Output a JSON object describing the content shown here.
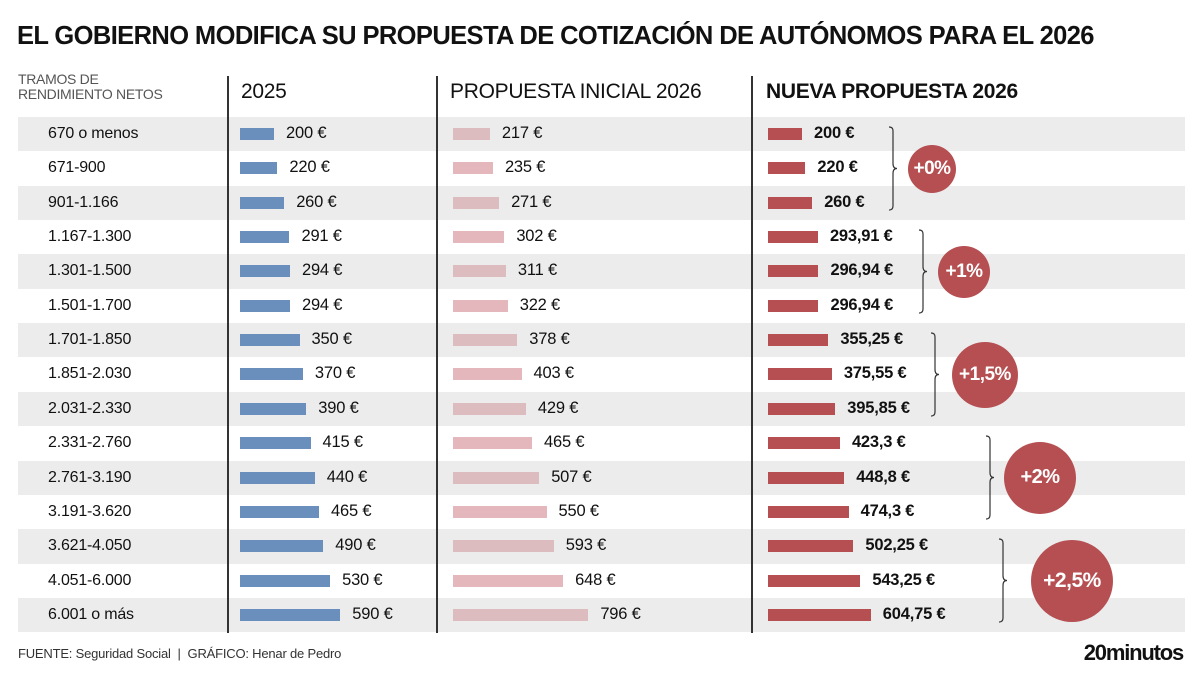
{
  "title": "EL GOBIERNO MODIFICA SU PROPUESTA DE COTIZACIÓN DE AUTÓNOMOS PARA EL 2026",
  "chart_data": {
    "type": "bar",
    "orientation": "horizontal",
    "category_header": "TRAMOS DE RENDIMIENTO NETOS",
    "categories": [
      "670 o menos",
      "671-900",
      "901-1.166",
      "1.167-1.300",
      "1.301-1.500",
      "1.501-1.700",
      "1.701-1.850",
      "1.851-2.030",
      "2.031-2.330",
      "2.331-2.760",
      "2.761-3.190",
      "3.191-3.620",
      "3.621-4.050",
      "4.051-6.000",
      "6.001 o más"
    ],
    "series": [
      {
        "name": "2025",
        "color": "#6a8fbd",
        "values": [
          200,
          220,
          260,
          291,
          294,
          294,
          350,
          370,
          390,
          415,
          440,
          465,
          490,
          530,
          590
        ],
        "labels": [
          "200 €",
          "220 €",
          "260 €",
          "291 €",
          "294 €",
          "294 €",
          "350 €",
          "370 €",
          "390 €",
          "415 €",
          "440 €",
          "465 €",
          "490 €",
          "530 €",
          "590 €"
        ]
      },
      {
        "name": "PROPUESTA INICIAL 2026",
        "color": "#e3b7bb",
        "values": [
          217,
          235,
          271,
          302,
          311,
          322,
          378,
          403,
          429,
          465,
          507,
          550,
          593,
          648,
          796
        ],
        "labels": [
          "217 €",
          "235 €",
          "271 €",
          "302 €",
          "311 €",
          "322 €",
          "378 €",
          "403 €",
          "429 €",
          "465 €",
          "507 €",
          "550 €",
          "593 €",
          "648 €",
          "796 €"
        ]
      },
      {
        "name": "NUEVA PROPUESTA 2026",
        "color": "#b54f52",
        "values": [
          200,
          220,
          260,
          293.91,
          296.94,
          296.94,
          355.25,
          375.55,
          395.85,
          423.3,
          448.8,
          474.3,
          502.25,
          543.25,
          604.75
        ],
        "labels": [
          "200 €",
          "220 €",
          "260 €",
          "293,91 €",
          "296,94 €",
          "296,94 €",
          "355,25 €",
          "375,55 €",
          "395,85 €",
          "423,3 €",
          "448,8 €",
          "474,3 €",
          "502,25 €",
          "543,25 €",
          "604,75 €"
        ]
      }
    ],
    "groups": [
      {
        "label": "+0%",
        "first_row": 0,
        "last_row": 2
      },
      {
        "label": "+1%",
        "first_row": 3,
        "last_row": 5
      },
      {
        "label": "+1,5%",
        "first_row": 6,
        "last_row": 8
      },
      {
        "label": "+2%",
        "first_row": 9,
        "last_row": 11
      },
      {
        "label": "+2,5%",
        "first_row": 12,
        "last_row": 14
      }
    ]
  },
  "footer": "FUENTE: Seguridad Social  |  GRÁFICO: Henar de Pedro",
  "logo": "20minutos"
}
